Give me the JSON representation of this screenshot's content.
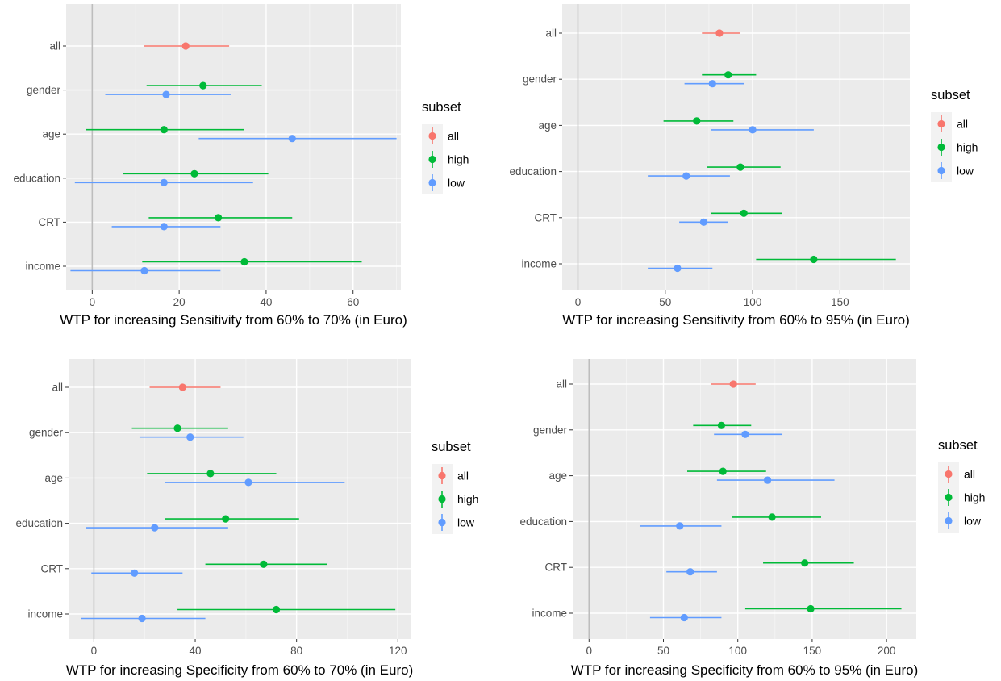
{
  "colors": {
    "all": "#F8766D",
    "high": "#00BA38",
    "low": "#619CFF",
    "panel_bg": "#EBEBEB",
    "grid_major": "#FFFFFF",
    "zero_line": "#BDBDBD",
    "tick_text": "#4D4D4D",
    "axis_title": "#000000"
  },
  "legend": {
    "title": "subset",
    "entries": [
      {
        "key": "all",
        "label": "all"
      },
      {
        "key": "high",
        "label": "high"
      },
      {
        "key": "low",
        "label": "low"
      }
    ]
  },
  "chart_data": [
    {
      "type": "scatter",
      "error_bars": true,
      "xlabel": "WTP for increasing Sensitivity from 60% to 70%  (in Euro)",
      "xlim": [
        -6,
        71
      ],
      "xticks": [
        0,
        20,
        40,
        60
      ],
      "categories": [
        "all",
        "gender",
        "age",
        "education",
        "CRT",
        "income"
      ],
      "series": [
        {
          "name": "all",
          "points": [
            {
              "category": "all",
              "x": 21.5,
              "lo": 12,
              "hi": 31.5
            }
          ]
        },
        {
          "name": "high",
          "points": [
            {
              "category": "gender",
              "x": 25.5,
              "lo": 12.5,
              "hi": 39
            },
            {
              "category": "age",
              "x": 16.5,
              "lo": -1.5,
              "hi": 35
            },
            {
              "category": "education",
              "x": 23.5,
              "lo": 7,
              "hi": 40.5
            },
            {
              "category": "CRT",
              "x": 29,
              "lo": 13,
              "hi": 46
            },
            {
              "category": "income",
              "x": 35,
              "lo": 11.5,
              "hi": 62
            }
          ]
        },
        {
          "name": "low",
          "points": [
            {
              "category": "gender",
              "x": 17,
              "lo": 3,
              "hi": 32
            },
            {
              "category": "age",
              "x": 46,
              "lo": 24.5,
              "hi": 70
            },
            {
              "category": "education",
              "x": 16.5,
              "lo": -4,
              "hi": 37
            },
            {
              "category": "CRT",
              "x": 16.5,
              "lo": 4.5,
              "hi": 29.5
            },
            {
              "category": "income",
              "x": 12,
              "lo": -5,
              "hi": 29.5
            }
          ]
        }
      ]
    },
    {
      "type": "scatter",
      "error_bars": true,
      "xlabel": "WTP for increasing Sensitivity from 60% to 95%  (in Euro)",
      "xlim": [
        -9,
        190
      ],
      "xticks": [
        0,
        50,
        100,
        150
      ],
      "categories": [
        "all",
        "gender",
        "age",
        "education",
        "CRT",
        "income"
      ],
      "series": [
        {
          "name": "all",
          "points": [
            {
              "category": "all",
              "x": 81,
              "lo": 71,
              "hi": 93
            }
          ]
        },
        {
          "name": "high",
          "points": [
            {
              "category": "gender",
              "x": 86,
              "lo": 71,
              "hi": 102
            },
            {
              "category": "age",
              "x": 68,
              "lo": 49,
              "hi": 89
            },
            {
              "category": "education",
              "x": 93,
              "lo": 74,
              "hi": 116
            },
            {
              "category": "CRT",
              "x": 95,
              "lo": 76,
              "hi": 117
            },
            {
              "category": "income",
              "x": 135,
              "lo": 102,
              "hi": 182
            }
          ]
        },
        {
          "name": "low",
          "points": [
            {
              "category": "gender",
              "x": 77,
              "lo": 61,
              "hi": 95
            },
            {
              "category": "age",
              "x": 100,
              "lo": 76,
              "hi": 135
            },
            {
              "category": "education",
              "x": 62,
              "lo": 40,
              "hi": 87
            },
            {
              "category": "CRT",
              "x": 72,
              "lo": 58,
              "hi": 86
            },
            {
              "category": "income",
              "x": 57,
              "lo": 40,
              "hi": 77
            }
          ]
        }
      ]
    },
    {
      "type": "scatter",
      "error_bars": true,
      "xlabel": "WTP for increasing Specificity from 60% to 70%  (in Euro)",
      "xlim": [
        -10,
        125
      ],
      "xticks": [
        0,
        40,
        80,
        120
      ],
      "categories": [
        "all",
        "gender",
        "age",
        "education",
        "CRT",
        "income"
      ],
      "series": [
        {
          "name": "all",
          "points": [
            {
              "category": "all",
              "x": 35,
              "lo": 22,
              "hi": 50
            }
          ]
        },
        {
          "name": "high",
          "points": [
            {
              "category": "gender",
              "x": 33,
              "lo": 15,
              "hi": 53
            },
            {
              "category": "age",
              "x": 46,
              "lo": 21,
              "hi": 72
            },
            {
              "category": "education",
              "x": 52,
              "lo": 28,
              "hi": 81
            },
            {
              "category": "CRT",
              "x": 67,
              "lo": 44,
              "hi": 92
            },
            {
              "category": "income",
              "x": 72,
              "lo": 33,
              "hi": 119
            }
          ]
        },
        {
          "name": "low",
          "points": [
            {
              "category": "gender",
              "x": 38,
              "lo": 18,
              "hi": 59
            },
            {
              "category": "age",
              "x": 61,
              "lo": 28,
              "hi": 99
            },
            {
              "category": "education",
              "x": 24,
              "lo": -3,
              "hi": 53
            },
            {
              "category": "CRT",
              "x": 16,
              "lo": -1,
              "hi": 35
            },
            {
              "category": "income",
              "x": 19,
              "lo": -5,
              "hi": 44
            }
          ]
        }
      ]
    },
    {
      "type": "scatter",
      "error_bars": true,
      "xlabel": "WTP for increasing Specificity from 60% to 95%  (in Euro)",
      "xlim": [
        -11,
        220
      ],
      "xticks": [
        0,
        50,
        100,
        150,
        200
      ],
      "categories": [
        "all",
        "gender",
        "age",
        "education",
        "CRT",
        "income"
      ],
      "series": [
        {
          "name": "all",
          "points": [
            {
              "category": "all",
              "x": 97,
              "lo": 82,
              "hi": 112
            }
          ]
        },
        {
          "name": "high",
          "points": [
            {
              "category": "gender",
              "x": 89,
              "lo": 70,
              "hi": 109
            },
            {
              "category": "age",
              "x": 90,
              "lo": 66,
              "hi": 119
            },
            {
              "category": "education",
              "x": 123,
              "lo": 96,
              "hi": 156
            },
            {
              "category": "CRT",
              "x": 145,
              "lo": 117,
              "hi": 178
            },
            {
              "category": "income",
              "x": 149,
              "lo": 105,
              "hi": 210
            }
          ]
        },
        {
          "name": "low",
          "points": [
            {
              "category": "gender",
              "x": 105,
              "lo": 84,
              "hi": 130
            },
            {
              "category": "age",
              "x": 120,
              "lo": 86,
              "hi": 165
            },
            {
              "category": "education",
              "x": 61,
              "lo": 34,
              "hi": 89
            },
            {
              "category": "CRT",
              "x": 68,
              "lo": 52,
              "hi": 86
            },
            {
              "category": "income",
              "x": 64,
              "lo": 41,
              "hi": 89
            }
          ]
        }
      ]
    }
  ]
}
